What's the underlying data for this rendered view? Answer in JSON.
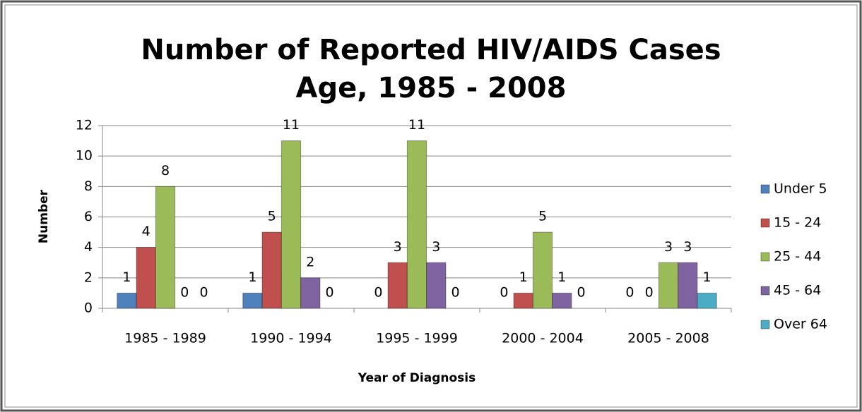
{
  "chart_data": {
    "type": "bar",
    "title": [
      "Number of Reported HIV/AIDS Cases",
      "Age, 1985 - 2008"
    ],
    "x_label": "Year of Diagnosis",
    "y_label": "Number",
    "categories": [
      "1985 - 1989",
      "1990 - 1994",
      "1995 - 1999",
      "2000 - 2004",
      "2005 - 2008"
    ],
    "series": [
      {
        "name": "Under 5",
        "color": "#4f81bd",
        "values": [
          1,
          1,
          0,
          0,
          0
        ]
      },
      {
        "name": "15 - 24",
        "color": "#c0504d",
        "values": [
          4,
          5,
          3,
          1,
          0
        ]
      },
      {
        "name": "25 - 44",
        "color": "#9bbb59",
        "values": [
          8,
          11,
          11,
          5,
          3
        ]
      },
      {
        "name": "45 - 64",
        "color": "#8064a2",
        "values": [
          0,
          2,
          3,
          1,
          3
        ]
      },
      {
        "name": "Over 64",
        "color": "#4bacc6",
        "values": [
          0,
          0,
          0,
          0,
          1
        ]
      }
    ],
    "ylim": [
      0,
      12
    ],
    "yticks": [
      0,
      2,
      4,
      6,
      8,
      10,
      12
    ],
    "grid": true,
    "legend": "right"
  }
}
